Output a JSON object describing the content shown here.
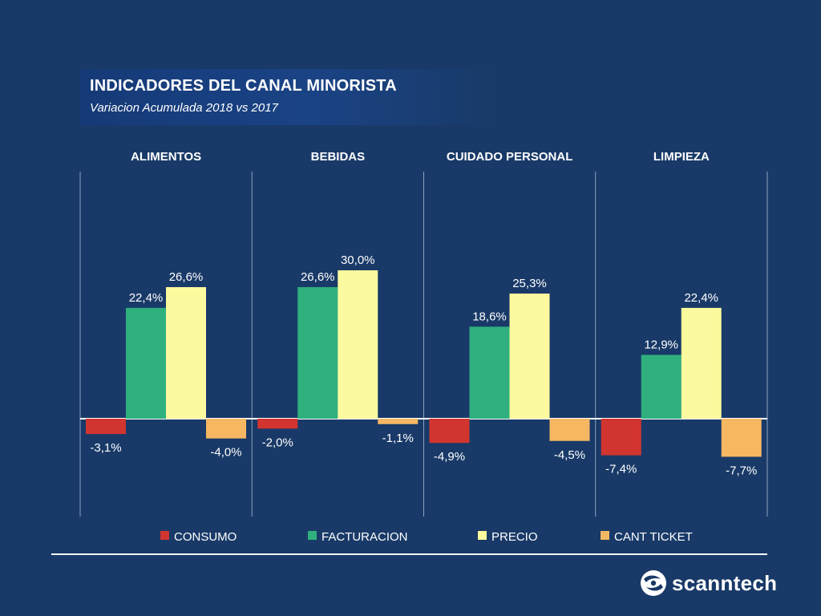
{
  "header": {
    "title": "INDICADORES DEL CANAL MINORISTA",
    "subtitle": "Variacion  Acumulada 2018 vs 2017"
  },
  "brand": {
    "name": "scanntech",
    "icon": "scanntech-logo-icon"
  },
  "colors": {
    "background": "#193a68",
    "consumo": "#d2352f",
    "facturacion": "#2fb07e",
    "precio": "#fbfa9e",
    "cant_ticket": "#f6b763"
  },
  "chart_data": {
    "type": "bar",
    "title": "INDICADORES DEL CANAL MINORISTA",
    "subtitle": "Variacion  Acumulada 2018 vs 2017",
    "categories": [
      "ALIMENTOS",
      "BEBIDAS",
      "CUIDADO PERSONAL",
      "LIMPIEZA"
    ],
    "series": [
      {
        "name": "CONSUMO",
        "color": "#d2352f",
        "values": [
          -3.1,
          -2.0,
          -4.9,
          -7.4
        ],
        "labels": [
          "-3,1%",
          "-2,0%",
          "-4,9%",
          "-7,4%"
        ]
      },
      {
        "name": "FACTURACION",
        "color": "#2fb07e",
        "values": [
          22.4,
          26.6,
          18.6,
          12.9
        ],
        "labels": [
          "22,4%",
          "26,6%",
          "18,6%",
          "12,9%"
        ]
      },
      {
        "name": "PRECIO",
        "color": "#fbfa9e",
        "values": [
          26.6,
          30.0,
          25.3,
          22.4
        ],
        "labels": [
          "26,6%",
          "30,0%",
          "25,3%",
          "22,4%"
        ]
      },
      {
        "name": "CANT TICKET",
        "color": "#f6b763",
        "values": [
          -4.0,
          -1.1,
          -4.5,
          -7.7
        ],
        "labels": [
          "-4,0%",
          "-1,1%",
          "-4,5%",
          "-7,7%"
        ]
      }
    ],
    "legend_position": "bottom",
    "grid": false,
    "ylim": [
      -20,
      32
    ]
  }
}
